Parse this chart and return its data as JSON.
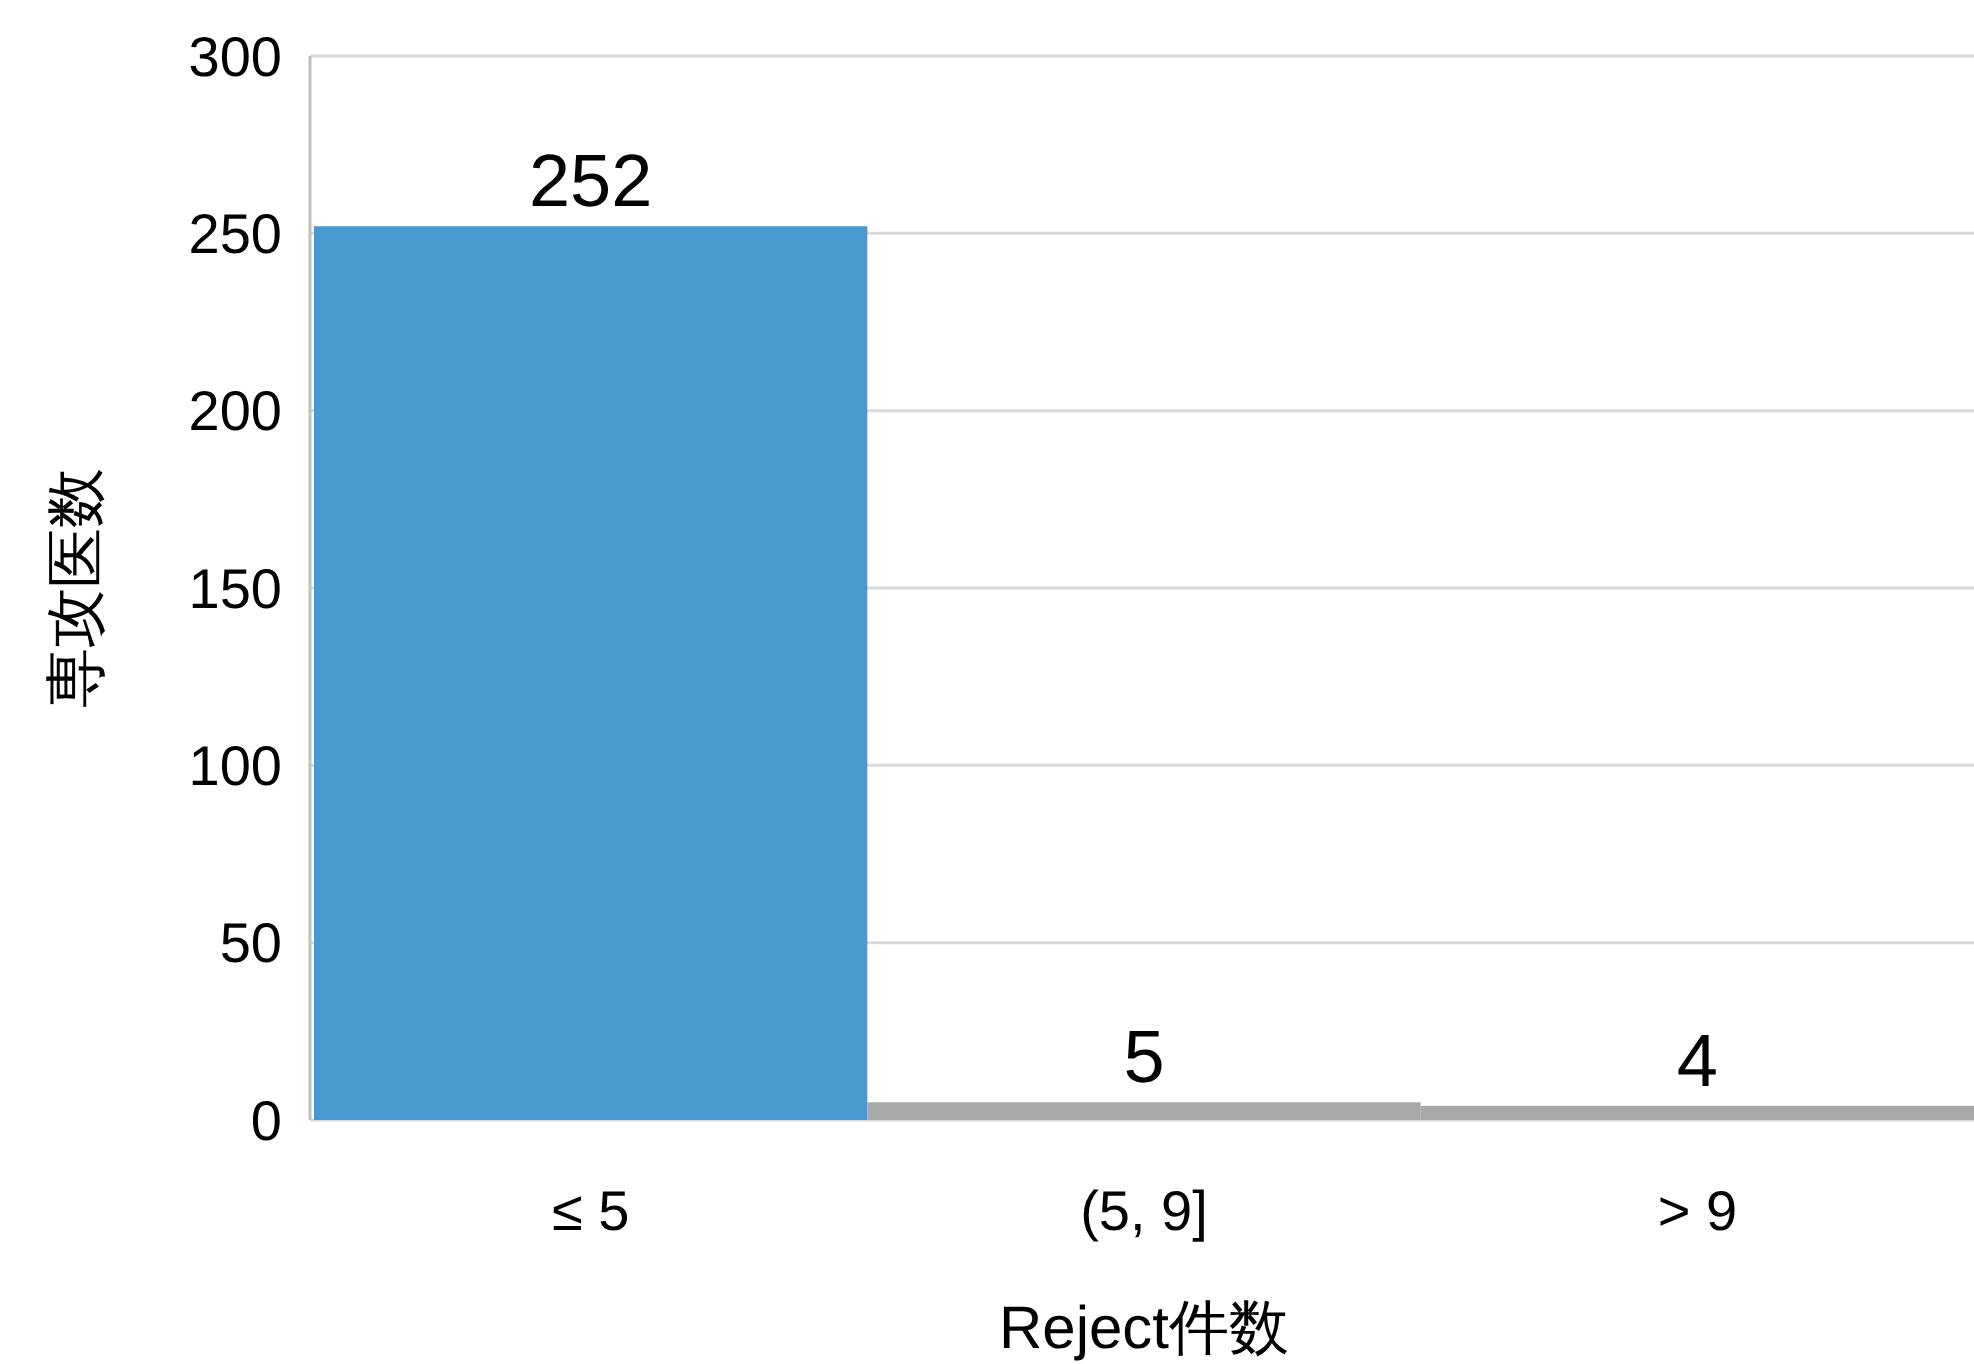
{
  "chart_data": {
    "type": "bar",
    "xlabel": "Reject件数",
    "ylabel": "専攻医数",
    "categories": [
      "≤ 5",
      "(5, 9]",
      "> 9"
    ],
    "values": [
      252,
      5,
      4
    ],
    "colors": [
      "#4a98d0",
      "#a8a8a8",
      "#a8a8a8"
    ],
    "ylim": [
      0,
      300
    ],
    "yticks": [
      0,
      50,
      100,
      150,
      200,
      250,
      300
    ],
    "grid": "y",
    "data_labels": true
  }
}
